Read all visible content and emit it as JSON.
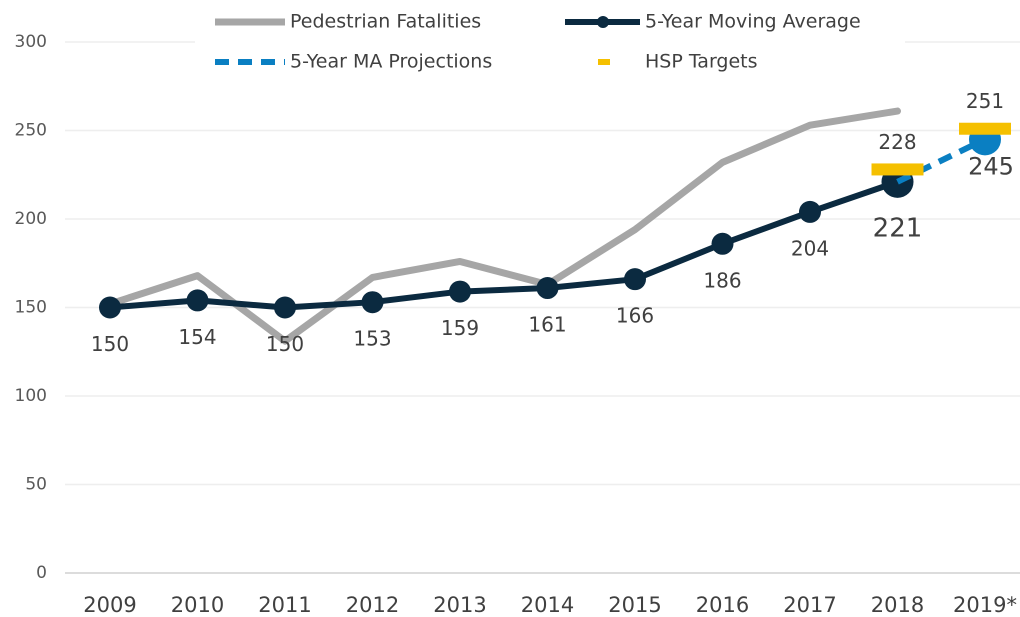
{
  "chart_data": {
    "type": "line",
    "categories": [
      "2009",
      "2010",
      "2011",
      "2012",
      "2013",
      "2014",
      "2015",
      "2016",
      "2017",
      "2018",
      "2019*"
    ],
    "series": [
      {
        "name": "Pedestrian Fatalities",
        "color": "#a6a6a6",
        "values": [
          152,
          168,
          131,
          167,
          176,
          163,
          194,
          232,
          253,
          261,
          null
        ]
      },
      {
        "name": "5-Year Moving Average",
        "color": "#0b2a40",
        "values": [
          150,
          154,
          150,
          153,
          159,
          161,
          166,
          186,
          204,
          221,
          null
        ]
      },
      {
        "name": "5-Year MA Projections",
        "color": "#0a7fc2",
        "values": [
          null,
          null,
          null,
          null,
          null,
          null,
          null,
          null,
          null,
          221,
          245
        ]
      },
      {
        "name": "HSP Targets",
        "color": "#f5c000",
        "values": [
          null,
          null,
          null,
          null,
          null,
          null,
          null,
          null,
          null,
          228,
          251
        ]
      }
    ],
    "ylim": [
      0,
      300
    ],
    "yticks": [
      0,
      50,
      100,
      150,
      200,
      250,
      300
    ],
    "grid": true
  }
}
